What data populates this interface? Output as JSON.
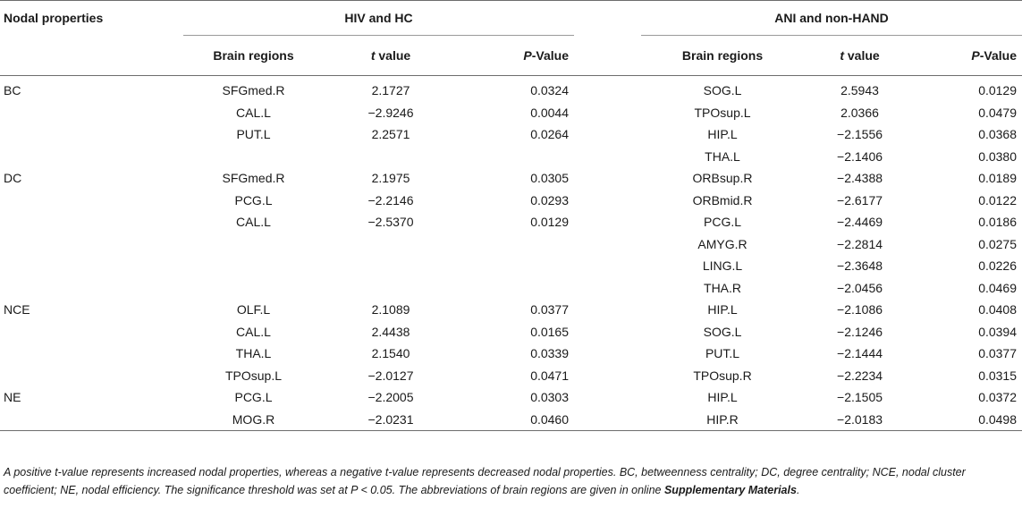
{
  "header": {
    "col1": "Nodal properties",
    "group1": "HIV and HC",
    "group2": "ANI and non-HAND",
    "sub": {
      "regions1": "Brain regions",
      "t1_italic": "t",
      "t1_rest": " value",
      "p1_italic": "P",
      "p1_rest": "-Value",
      "regions2": "Brain regions",
      "t2_italic": "t",
      "t2_rest": " value",
      "p2_italic": "P",
      "p2_rest": "-Value"
    }
  },
  "rows": [
    {
      "prop": "BC",
      "r1": "SFGmed.R",
      "t1": "2.1727",
      "p1": "0.0324",
      "r2": "SOG.L",
      "t2": "2.5943",
      "p2": "0.0129"
    },
    {
      "prop": "",
      "r1": "CAL.L",
      "t1": "−2.9246",
      "p1": "0.0044",
      "r2": "TPOsup.L",
      "t2": "2.0366",
      "p2": "0.0479"
    },
    {
      "prop": "",
      "r1": "PUT.L",
      "t1": "2.2571",
      "p1": "0.0264",
      "r2": "HIP.L",
      "t2": "−2.1556",
      "p2": "0.0368"
    },
    {
      "prop": "",
      "r1": "",
      "t1": "",
      "p1": "",
      "r2": "THA.L",
      "t2": "−2.1406",
      "p2": "0.0380"
    },
    {
      "prop": "DC",
      "r1": "SFGmed.R",
      "t1": "2.1975",
      "p1": "0.0305",
      "r2": "ORBsup.R",
      "t2": "−2.4388",
      "p2": "0.0189"
    },
    {
      "prop": "",
      "r1": "PCG.L",
      "t1": "−2.2146",
      "p1": "0.0293",
      "r2": "ORBmid.R",
      "t2": "−2.6177",
      "p2": "0.0122"
    },
    {
      "prop": "",
      "r1": "CAL.L",
      "t1": "−2.5370",
      "p1": "0.0129",
      "r2": "PCG.L",
      "t2": "−2.4469",
      "p2": "0.0186"
    },
    {
      "prop": "",
      "r1": "",
      "t1": "",
      "p1": "",
      "r2": "AMYG.R",
      "t2": "−2.2814",
      "p2": "0.0275"
    },
    {
      "prop": "",
      "r1": "",
      "t1": "",
      "p1": "",
      "r2": "LING.L",
      "t2": "−2.3648",
      "p2": "0.0226"
    },
    {
      "prop": "",
      "r1": "",
      "t1": "",
      "p1": "",
      "r2": "THA.R",
      "t2": "−2.0456",
      "p2": "0.0469"
    },
    {
      "prop": "NCE",
      "r1": "OLF.L",
      "t1": "2.1089",
      "p1": "0.0377",
      "r2": "HIP.L",
      "t2": "−2.1086",
      "p2": "0.0408"
    },
    {
      "prop": "",
      "r1": "CAL.L",
      "t1": "2.4438",
      "p1": "0.0165",
      "r2": "SOG.L",
      "t2": "−2.1246",
      "p2": "0.0394"
    },
    {
      "prop": "",
      "r1": "THA.L",
      "t1": "2.1540",
      "p1": "0.0339",
      "r2": "PUT.L",
      "t2": "−2.1444",
      "p2": "0.0377"
    },
    {
      "prop": "",
      "r1": "TPOsup.L",
      "t1": "−2.0127",
      "p1": "0.0471",
      "r2": "TPOsup.R",
      "t2": "−2.2234",
      "p2": "0.0315"
    },
    {
      "prop": "NE",
      "r1": "PCG.L",
      "t1": "−2.2005",
      "p1": "0.0303",
      "r2": "HIP.L",
      "t2": "−2.1505",
      "p2": "0.0372"
    },
    {
      "prop": "",
      "r1": "MOG.R",
      "t1": "−2.0231",
      "p1": "0.0460",
      "r2": "HIP.R",
      "t2": "−2.0183",
      "p2": "0.0498"
    }
  ],
  "footnote": {
    "text": "A positive t-value represents increased nodal properties, whereas a negative t-value represents decreased nodal properties. BC, betweenness centrality; DC, degree centrality; NCE, nodal cluster coefficient; NE, nodal efficiency. The significance threshold was set at P < 0.05. The abbreviations of brain regions are given in online ",
    "bold": "Supplementary Materials",
    "end": "."
  }
}
